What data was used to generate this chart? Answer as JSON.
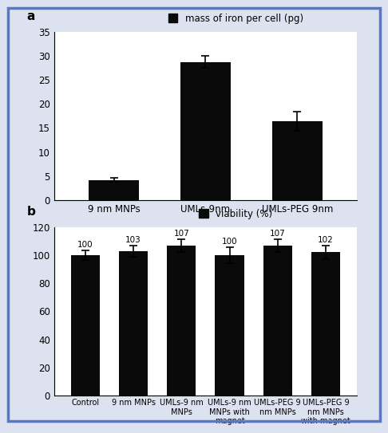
{
  "panel_a": {
    "categories": [
      "9 nm MNPs",
      "UMLs-9nm",
      "UMLs-PEG 9nm"
    ],
    "values": [
      4.1,
      28.7,
      16.3
    ],
    "errors": [
      0.4,
      1.2,
      2.0
    ],
    "ylim": [
      0,
      35
    ],
    "yticks": [
      0,
      5,
      10,
      15,
      20,
      25,
      30,
      35
    ],
    "label": "a",
    "legend_label": "mass of iron per cell (pg)"
  },
  "panel_b": {
    "categories": [
      "Control",
      "9 nm MNPs",
      "UMLs-9 nm\nMNPs",
      "UMLs-9 nm\nMNPs with\nmagnet",
      "UMLs-PEG 9\nnm MNPs",
      "UMLs-PEG 9\nnm MNPs\nwith magnet"
    ],
    "values": [
      100,
      103,
      107,
      100,
      107,
      102
    ],
    "errors": [
      3.5,
      4.0,
      4.5,
      5.5,
      4.5,
      5.0
    ],
    "ylim": [
      0,
      120
    ],
    "yticks": [
      0,
      20,
      40,
      60,
      80,
      100,
      120
    ],
    "label": "b",
    "legend_label": "viability (%)"
  },
  "bar_color": "#0a0a0a",
  "background_color": "#dde2f0",
  "axes_bg": "#ffffff",
  "border_color": "#5577cc",
  "border_lw": 2.5
}
